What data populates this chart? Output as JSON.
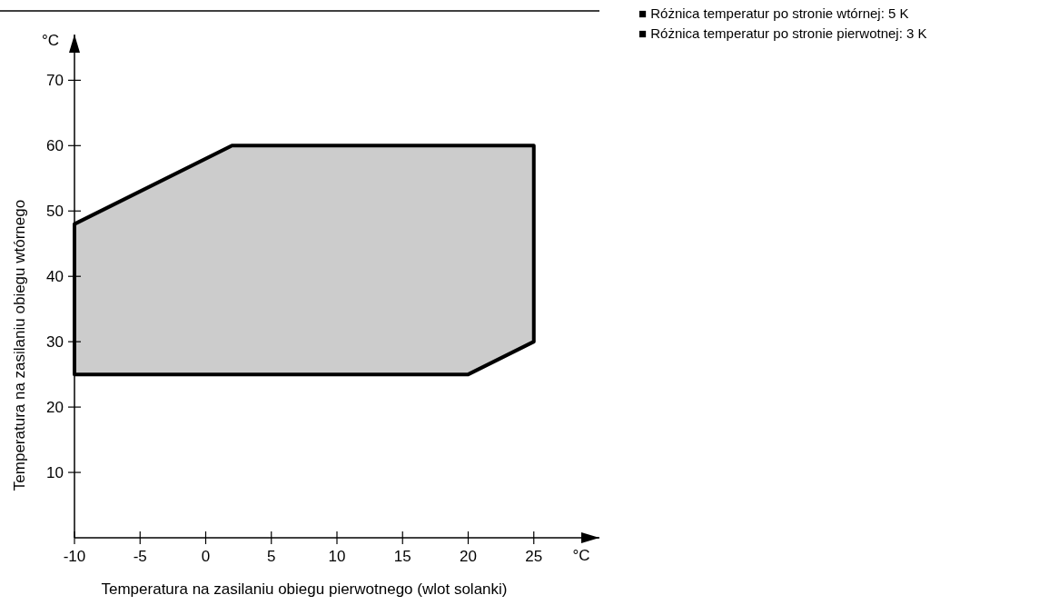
{
  "chart_data": {
    "type": "area",
    "xlabel": "Temperatura na zasilaniu obiegu pierwotnego (wlot solanki)",
    "ylabel": "Temperatura na zasilaniu obiegu wtórnego",
    "xlim": [
      -10,
      30
    ],
    "ylim": [
      0,
      77
    ],
    "xticks": [
      -10,
      -5,
      0,
      5,
      10,
      15,
      20,
      25
    ],
    "yticks": [
      10,
      20,
      30,
      40,
      50,
      60,
      70
    ],
    "grid": false,
    "series": [
      {
        "color": "#cccccc",
        "x": [
          -10,
          -10,
          2,
          25,
          25,
          20,
          -10
        ],
        "values": [
          25,
          48,
          60,
          60,
          30,
          25,
          25
        ]
      }
    ],
    "annotations": [
      "°C",
      "°C",
      "■ Różnica temperatur po stronie wtórnej: 5 K",
      "■ Różnica temperatur po stronie pierwotnej: 3 K"
    ]
  }
}
